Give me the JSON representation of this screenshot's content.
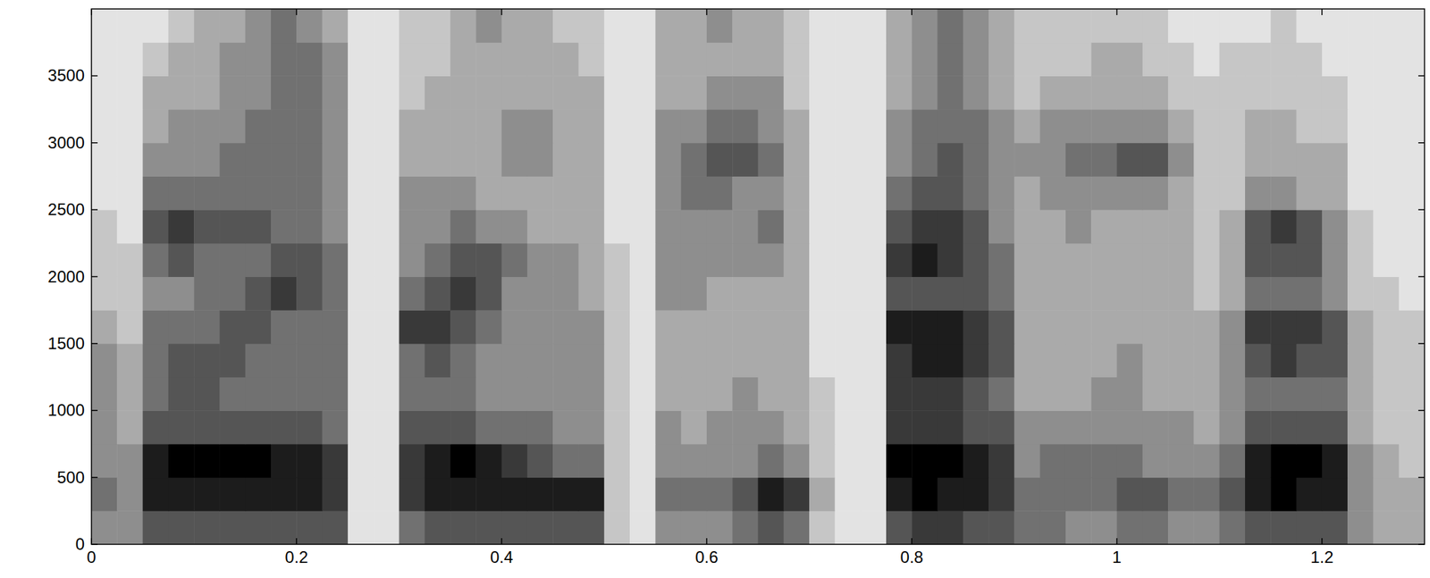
{
  "chart_data": {
    "type": "heatmap",
    "x": [
      0.0125,
      0.0375,
      0.0625,
      0.0875,
      0.1125,
      0.1375,
      0.1625,
      0.1875,
      0.2125,
      0.2375,
      0.2625,
      0.2875,
      0.3125,
      0.3375,
      0.3625,
      0.3875,
      0.4125,
      0.4375,
      0.4625,
      0.4875,
      0.5125,
      0.5375,
      0.5625,
      0.5875,
      0.6125,
      0.6375,
      0.6625,
      0.6875,
      0.7125,
      0.7375,
      0.7625,
      0.7875,
      0.8125,
      0.8375,
      0.8625,
      0.8875,
      0.9125,
      0.9375,
      0.9625,
      0.9875,
      1.0125,
      1.0375,
      1.0625,
      1.0875,
      1.1125,
      1.1375,
      1.1625,
      1.1875,
      1.2125,
      1.2375,
      1.2625,
      1.2875
    ],
    "y": [
      125,
      375,
      625,
      875,
      1125,
      1375,
      1625,
      1875,
      2125,
      2375,
      2625,
      2875,
      3125,
      3375,
      3625,
      3875
    ],
    "z": [
      [
        4,
        4,
        6,
        6,
        6,
        6,
        6,
        6,
        6,
        6,
        1,
        1,
        5,
        6,
        6,
        6,
        6,
        6,
        6,
        6,
        2,
        1,
        4,
        4,
        4,
        5,
        6,
        5,
        2,
        1,
        1,
        6,
        7,
        7,
        6,
        6,
        5,
        5,
        4,
        4,
        5,
        5,
        4,
        4,
        5,
        6,
        6,
        6,
        6,
        4,
        3,
        3
      ],
      [
        5,
        4,
        8,
        8,
        8,
        8,
        8,
        8,
        8,
        7,
        1,
        1,
        7,
        8,
        8,
        8,
        8,
        8,
        8,
        8,
        2,
        1,
        5,
        5,
        5,
        6,
        8,
        7,
        3,
        1,
        1,
        8,
        9,
        8,
        8,
        7,
        5,
        5,
        5,
        5,
        6,
        6,
        5,
        5,
        6,
        8,
        9,
        8,
        8,
        4,
        3,
        3
      ],
      [
        4,
        4,
        8,
        9,
        9,
        9,
        9,
        8,
        8,
        7,
        1,
        1,
        7,
        8,
        9,
        8,
        7,
        6,
        5,
        5,
        2,
        1,
        4,
        4,
        4,
        4,
        5,
        4,
        2,
        1,
        1,
        9,
        9,
        9,
        8,
        7,
        4,
        5,
        5,
        5,
        5,
        4,
        4,
        4,
        5,
        8,
        9,
        9,
        8,
        4,
        3,
        2
      ],
      [
        4,
        3,
        6,
        6,
        6,
        6,
        6,
        6,
        6,
        5,
        1,
        1,
        6,
        6,
        6,
        5,
        5,
        5,
        4,
        4,
        2,
        1,
        4,
        3,
        4,
        4,
        4,
        3,
        2,
        1,
        1,
        7,
        7,
        7,
        6,
        6,
        4,
        4,
        4,
        4,
        4,
        4,
        4,
        3,
        4,
        6,
        6,
        6,
        6,
        3,
        2,
        2
      ],
      [
        4,
        3,
        5,
        6,
        6,
        5,
        5,
        5,
        5,
        5,
        1,
        1,
        5,
        5,
        5,
        4,
        4,
        4,
        4,
        4,
        2,
        1,
        3,
        3,
        3,
        4,
        3,
        3,
        2,
        1,
        1,
        7,
        7,
        7,
        6,
        5,
        3,
        3,
        3,
        4,
        4,
        3,
        3,
        3,
        4,
        5,
        5,
        5,
        5,
        3,
        2,
        2
      ],
      [
        4,
        3,
        5,
        6,
        6,
        6,
        5,
        5,
        5,
        5,
        1,
        1,
        5,
        6,
        5,
        4,
        4,
        4,
        4,
        4,
        2,
        1,
        3,
        3,
        3,
        3,
        3,
        3,
        1,
        1,
        1,
        7,
        8,
        8,
        7,
        6,
        3,
        3,
        3,
        3,
        4,
        3,
        3,
        3,
        4,
        6,
        7,
        6,
        6,
        3,
        2,
        2
      ],
      [
        3,
        2,
        5,
        5,
        5,
        6,
        6,
        5,
        5,
        5,
        1,
        1,
        7,
        7,
        6,
        5,
        4,
        4,
        4,
        4,
        2,
        1,
        3,
        3,
        3,
        3,
        3,
        3,
        1,
        1,
        1,
        8,
        8,
        8,
        7,
        6,
        3,
        3,
        3,
        3,
        3,
        3,
        3,
        3,
        4,
        7,
        7,
        7,
        6,
        3,
        2,
        2
      ],
      [
        2,
        2,
        4,
        4,
        5,
        5,
        6,
        7,
        6,
        5,
        1,
        1,
        5,
        6,
        7,
        6,
        4,
        4,
        4,
        3,
        2,
        1,
        4,
        4,
        3,
        3,
        3,
        3,
        1,
        1,
        1,
        6,
        6,
        6,
        6,
        5,
        3,
        3,
        3,
        3,
        3,
        3,
        3,
        2,
        3,
        5,
        5,
        5,
        4,
        2,
        2,
        1
      ],
      [
        2,
        2,
        5,
        6,
        5,
        5,
        5,
        6,
        6,
        5,
        1,
        1,
        4,
        5,
        6,
        6,
        5,
        4,
        4,
        3,
        2,
        1,
        4,
        4,
        4,
        4,
        4,
        3,
        1,
        1,
        1,
        7,
        8,
        7,
        6,
        5,
        3,
        3,
        3,
        3,
        3,
        3,
        3,
        2,
        3,
        6,
        6,
        6,
        4,
        2,
        1,
        1
      ],
      [
        2,
        1,
        6,
        7,
        6,
        6,
        6,
        5,
        5,
        4,
        1,
        1,
        4,
        4,
        5,
        4,
        4,
        3,
        3,
        3,
        1,
        1,
        4,
        4,
        4,
        4,
        5,
        3,
        1,
        1,
        1,
        6,
        7,
        7,
        6,
        4,
        3,
        3,
        4,
        3,
        3,
        3,
        3,
        2,
        3,
        6,
        7,
        6,
        4,
        2,
        1,
        1
      ],
      [
        1,
        1,
        5,
        5,
        5,
        5,
        5,
        5,
        5,
        4,
        1,
        1,
        4,
        4,
        4,
        3,
        3,
        3,
        3,
        3,
        1,
        1,
        4,
        5,
        5,
        4,
        4,
        3,
        1,
        1,
        1,
        5,
        6,
        6,
        5,
        4,
        3,
        4,
        4,
        4,
        4,
        4,
        3,
        2,
        2,
        4,
        4,
        3,
        3,
        1,
        1,
        1
      ],
      [
        1,
        1,
        4,
        4,
        4,
        5,
        5,
        5,
        5,
        4,
        1,
        1,
        3,
        3,
        3,
        3,
        4,
        4,
        3,
        3,
        1,
        1,
        4,
        5,
        6,
        6,
        5,
        3,
        1,
        1,
        1,
        4,
        5,
        6,
        5,
        4,
        4,
        4,
        5,
        5,
        6,
        6,
        4,
        2,
        2,
        3,
        3,
        3,
        3,
        1,
        1,
        1
      ],
      [
        1,
        1,
        3,
        4,
        4,
        4,
        5,
        5,
        5,
        4,
        1,
        1,
        3,
        3,
        3,
        3,
        4,
        4,
        3,
        3,
        1,
        1,
        4,
        4,
        5,
        5,
        4,
        3,
        1,
        1,
        1,
        4,
        5,
        5,
        5,
        4,
        3,
        4,
        4,
        4,
        4,
        4,
        3,
        2,
        2,
        3,
        3,
        2,
        2,
        1,
        1,
        1
      ],
      [
        1,
        1,
        3,
        3,
        3,
        4,
        4,
        5,
        5,
        4,
        1,
        1,
        2,
        3,
        3,
        3,
        3,
        3,
        3,
        3,
        1,
        1,
        3,
        3,
        4,
        4,
        4,
        2,
        1,
        1,
        1,
        3,
        4,
        5,
        4,
        3,
        2,
        3,
        3,
        3,
        3,
        3,
        2,
        2,
        2,
        2,
        2,
        2,
        2,
        1,
        1,
        1
      ],
      [
        1,
        1,
        2,
        3,
        3,
        4,
        4,
        5,
        5,
        4,
        1,
        1,
        2,
        2,
        3,
        3,
        3,
        3,
        3,
        2,
        1,
        1,
        3,
        3,
        3,
        3,
        3,
        2,
        1,
        1,
        1,
        3,
        4,
        5,
        4,
        3,
        2,
        2,
        2,
        3,
        3,
        2,
        2,
        1,
        2,
        2,
        2,
        2,
        1,
        1,
        1,
        1
      ],
      [
        1,
        1,
        1,
        2,
        3,
        3,
        4,
        5,
        4,
        3,
        1,
        1,
        2,
        2,
        3,
        4,
        3,
        3,
        2,
        2,
        1,
        1,
        3,
        3,
        4,
        3,
        3,
        2,
        1,
        1,
        1,
        3,
        4,
        5,
        4,
        3,
        2,
        2,
        2,
        2,
        2,
        2,
        1,
        1,
        1,
        1,
        2,
        1,
        1,
        1,
        1,
        1
      ]
    ],
    "zlim": [
      0,
      9
    ],
    "xlim": [
      0,
      1.3
    ],
    "ylim": [
      0,
      4000
    ],
    "xticks": [
      0,
      0.2,
      0.4,
      0.6,
      0.8,
      1,
      1.2
    ],
    "yticks": [
      0,
      500,
      1000,
      1500,
      2000,
      2500,
      3000,
      3500
    ]
  }
}
